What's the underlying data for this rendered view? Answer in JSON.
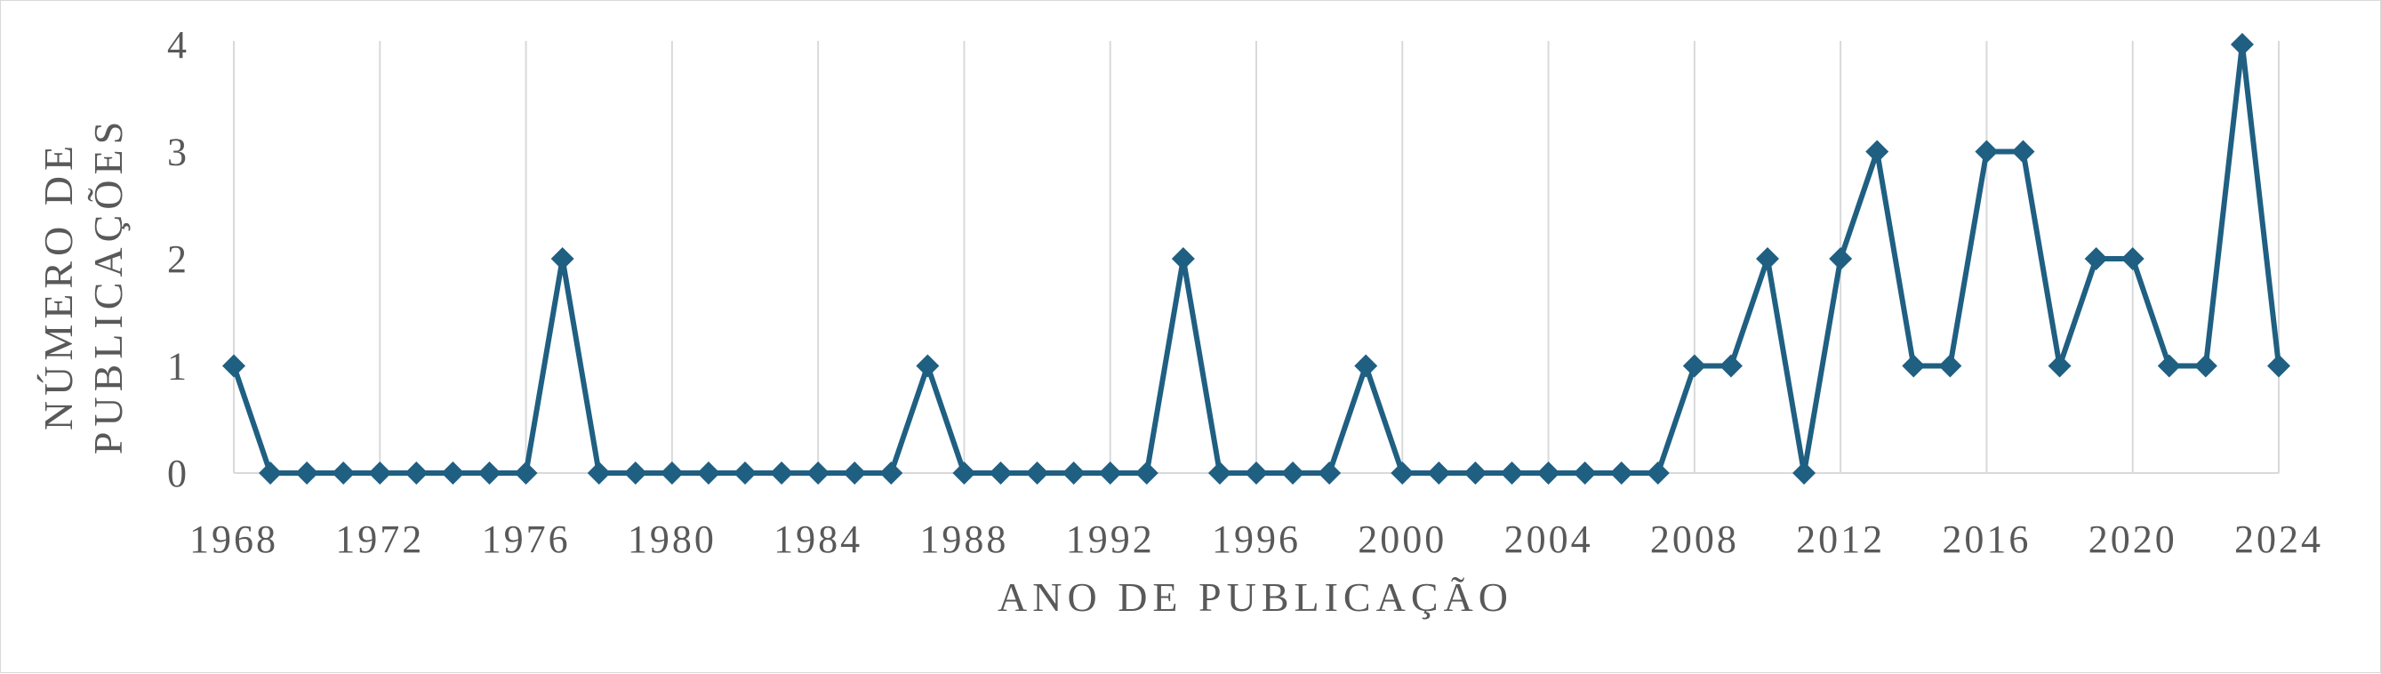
{
  "chart_data": {
    "type": "line",
    "title": "",
    "xlabel": "ANO DE PUBLICAÇÃO",
    "ylabel_lines": [
      "NÚMERO DE",
      "PUBLICAÇÕES"
    ],
    "x_range": [
      1968,
      2024
    ],
    "x_tick_labels": [
      "1968",
      "1972",
      "1976",
      "1980",
      "1984",
      "1988",
      "1992",
      "1996",
      "2000",
      "2004",
      "2008",
      "2012",
      "2016",
      "2020",
      "2024"
    ],
    "ylim": [
      0,
      4
    ],
    "y_tick_labels": [
      "0",
      "1",
      "2",
      "3",
      "4"
    ],
    "grid": "vertical",
    "legend": "none",
    "line_color": "#1f5f82",
    "series": [
      {
        "x": [
          1968,
          1969,
          1970,
          1971,
          1972,
          1973,
          1974,
          1975,
          1976,
          1977,
          1978,
          1979,
          1980,
          1981,
          1982,
          1983,
          1984,
          1985,
          1986,
          1987,
          1988,
          1989,
          1990,
          1991,
          1992,
          1993,
          1994,
          1995,
          1996,
          1997,
          1998,
          1999,
          2000,
          2001,
          2002,
          2003,
          2004,
          2005,
          2006,
          2007,
          2008,
          2009,
          2010,
          2011,
          2012,
          2013,
          2014,
          2015,
          2016,
          2017,
          2018,
          2019,
          2020,
          2021,
          2022,
          2023,
          2024
        ],
        "values": [
          1,
          0,
          0,
          0,
          0,
          0,
          0,
          0,
          0,
          2,
          0,
          0,
          0,
          0,
          0,
          0,
          0,
          0,
          0,
          1,
          0,
          0,
          0,
          0,
          0,
          0,
          2,
          0,
          0,
          0,
          0,
          1,
          0,
          0,
          0,
          0,
          0,
          0,
          0,
          0,
          1,
          1,
          2,
          0,
          2,
          3,
          1,
          1,
          3,
          3,
          1,
          2,
          2,
          1,
          1,
          4,
          1
        ]
      }
    ]
  }
}
